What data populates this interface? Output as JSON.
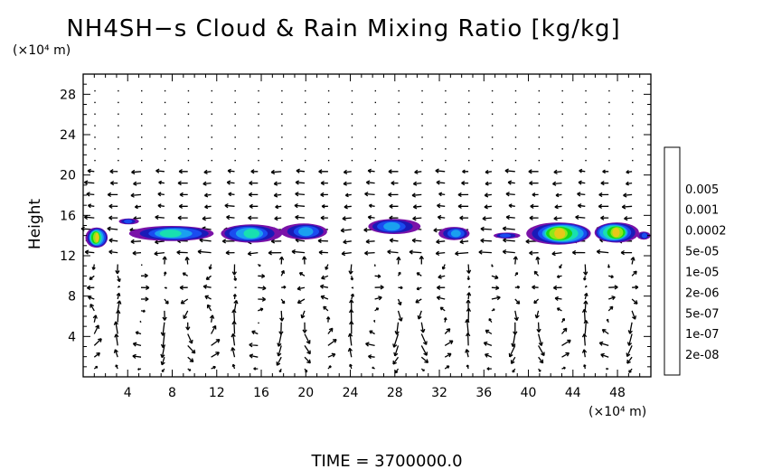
{
  "chart_data": {
    "type": "heatmap",
    "title": "NH4SH−s Cloud & Rain Mixing Ratio [kg/kg]",
    "ylabel": "Height",
    "y_unit": "(×10⁴ m)",
    "x_unit": "(×10⁴ m)",
    "time_label": "TIME  =  3700000.0",
    "xlim": [
      0,
      51
    ],
    "ylim": [
      0,
      30
    ],
    "x_ticks": [
      {
        "value": 4,
        "label": "4"
      },
      {
        "value": 8,
        "label": "8"
      },
      {
        "value": 12,
        "label": "12"
      },
      {
        "value": 16,
        "label": "16"
      },
      {
        "value": 20,
        "label": "20"
      },
      {
        "value": 24,
        "label": "24"
      },
      {
        "value": 28,
        "label": "28"
      },
      {
        "value": 32,
        "label": "32"
      },
      {
        "value": 36,
        "label": "36"
      },
      {
        "value": 40,
        "label": "40"
      },
      {
        "value": 44,
        "label": "44"
      },
      {
        "value": 48,
        "label": "48"
      }
    ],
    "y_ticks": [
      {
        "value": 4,
        "label": "4"
      },
      {
        "value": 8,
        "label": "8"
      },
      {
        "value": 12,
        "label": "12"
      },
      {
        "value": 16,
        "label": "16"
      },
      {
        "value": 20,
        "label": "20"
      },
      {
        "value": 24,
        "label": "24"
      },
      {
        "value": 28,
        "label": "28"
      }
    ],
    "colorbar": {
      "colors": [
        "#7a12a8",
        "#1a1ab8",
        "#1a4cf0",
        "#1aa0f0",
        "#18e0b0",
        "#18d418",
        "#90e818",
        "#e8c818",
        "#f07018",
        "#f01818",
        "#f89090"
      ],
      "labels": [
        "2e-08",
        "1e-07",
        "5e-07",
        "2e-06",
        "1e-05",
        "5e-05",
        "0.0002",
        "0.001",
        "0.005"
      ]
    },
    "cloud_patches": [
      {
        "x0": 0.2,
        "x1": 2.2,
        "yc": 13.8,
        "thick": 2.0,
        "peak": 7
      },
      {
        "x0": 3.2,
        "x1": 5.0,
        "yc": 15.4,
        "thick": 0.6,
        "peak": 2
      },
      {
        "x0": 4.2,
        "x1": 11.8,
        "yc": 14.2,
        "thick": 1.5,
        "peak": 4
      },
      {
        "x0": 12.3,
        "x1": 17.8,
        "yc": 14.2,
        "thick": 1.8,
        "peak": 4
      },
      {
        "x0": 17.8,
        "x1": 22.0,
        "yc": 14.4,
        "thick": 1.6,
        "peak": 3
      },
      {
        "x0": 25.5,
        "x1": 30.2,
        "yc": 14.9,
        "thick": 1.5,
        "peak": 3
      },
      {
        "x0": 32.0,
        "x1": 34.8,
        "yc": 14.2,
        "thick": 1.3,
        "peak": 3
      },
      {
        "x0": 36.8,
        "x1": 39.2,
        "yc": 14.0,
        "thick": 0.6,
        "peak": 2
      },
      {
        "x0": 40.0,
        "x1": 45.8,
        "yc": 14.2,
        "thick": 2.2,
        "peak": 7
      },
      {
        "x0": 45.8,
        "x1": 49.8,
        "yc": 14.3,
        "thick": 2.0,
        "peak": 7
      },
      {
        "x0": 49.8,
        "x1": 51.0,
        "yc": 14.0,
        "thick": 0.8,
        "peak": 2
      }
    ]
  }
}
